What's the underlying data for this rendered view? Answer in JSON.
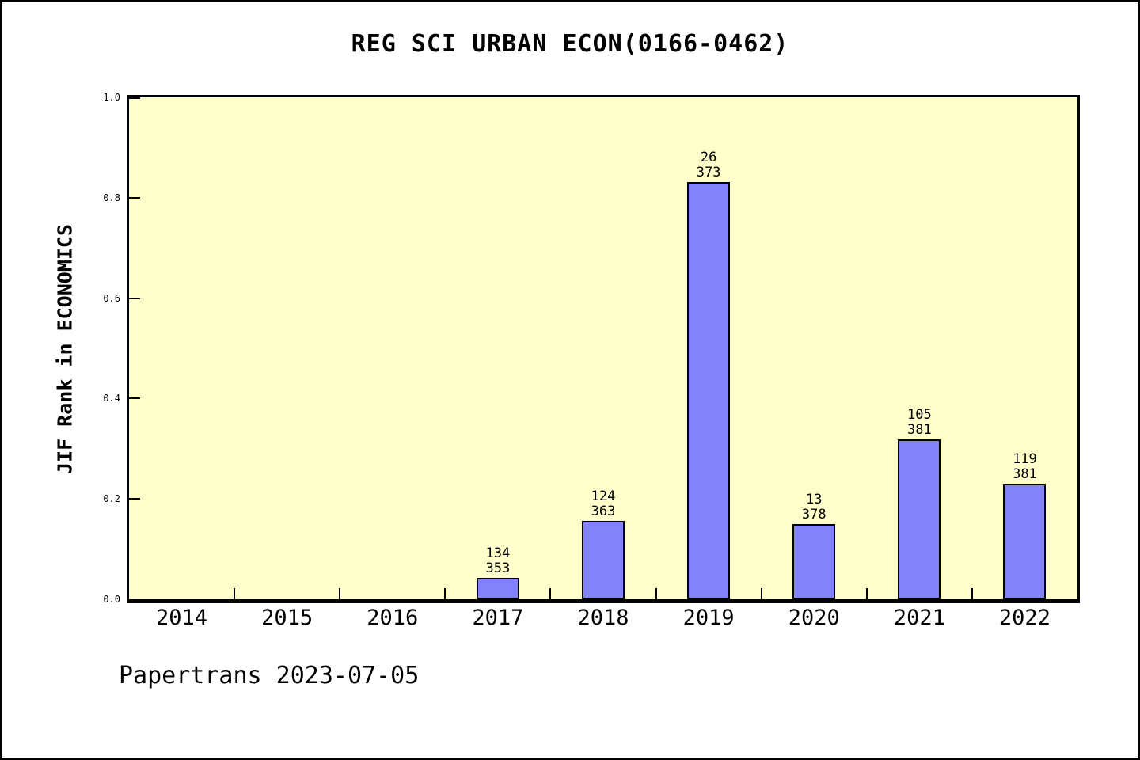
{
  "title": "REG SCI URBAN ECON(0166-0462)",
  "footer": "Papertrans 2023-07-05",
  "chart_data": {
    "type": "bar",
    "title": "REG SCI URBAN ECON(0166-0462)",
    "xlabel": "",
    "ylabel": "JIF Rank in ECONOMICS",
    "ylim": [
      0.0,
      1.0
    ],
    "ytick_labels": [
      "0.0",
      "0.2",
      "0.4",
      "0.6",
      "0.8",
      "1.0"
    ],
    "categories": [
      "2014",
      "2015",
      "2016",
      "2017",
      "2018",
      "2019",
      "2020",
      "2021",
      "2022"
    ],
    "series": [
      {
        "name": "JIF Rank in ECONOMICS",
        "values": [
          null,
          null,
          null,
          0.042,
          0.156,
          0.831,
          0.15,
          0.319,
          0.231
        ]
      }
    ],
    "bar_annotations": [
      null,
      null,
      null,
      {
        "rank": "134",
        "total": "353"
      },
      {
        "rank": "124",
        "total": "363"
      },
      {
        "rank": "26",
        "total": "373"
      },
      {
        "rank": "13",
        "total": "378"
      },
      {
        "rank": "105",
        "total": "381"
      },
      {
        "rank": "119",
        "total": "381"
      }
    ],
    "grid": false,
    "legend": null,
    "colors": {
      "bar_fill": "#8282FA",
      "bar_edge": "#000000",
      "plot_background": "#FFFFCC",
      "figure_background": "#FFFFFF",
      "text": "#000000"
    }
  }
}
